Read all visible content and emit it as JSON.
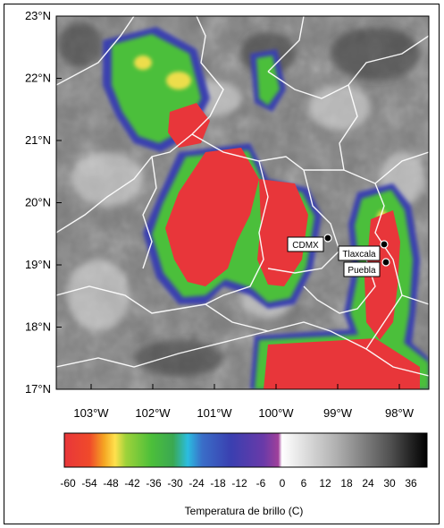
{
  "map": {
    "lat_ticks": [
      "23°N",
      "22°N",
      "21°N",
      "20°N",
      "19°N",
      "18°N",
      "17°N"
    ],
    "lon_ticks": [
      "103°W",
      "102°W",
      "101°W",
      "100°W",
      "99°W",
      "98°W"
    ],
    "cities": [
      {
        "name": "CDMX"
      },
      {
        "name": "Tlaxcala"
      },
      {
        "name": "Puebla"
      }
    ],
    "colors": {
      "cold_core": "#e8363a",
      "orange": "#f5a623",
      "yellow": "#ffe14d",
      "green": "#4cbf3a",
      "cyan": "#2bbde0",
      "blue": "#3a3fb0",
      "purple": "#8a3a9e",
      "boundary": "#ffffff"
    }
  },
  "colorbar": {
    "ticks": [
      "-60",
      "-54",
      "-48",
      "-42",
      "-36",
      "-30",
      "-24",
      "-18",
      "-12",
      "-6",
      "0",
      "6",
      "12",
      "18",
      "24",
      "30",
      "36"
    ],
    "title": "Temperatura de brillo (C)"
  }
}
